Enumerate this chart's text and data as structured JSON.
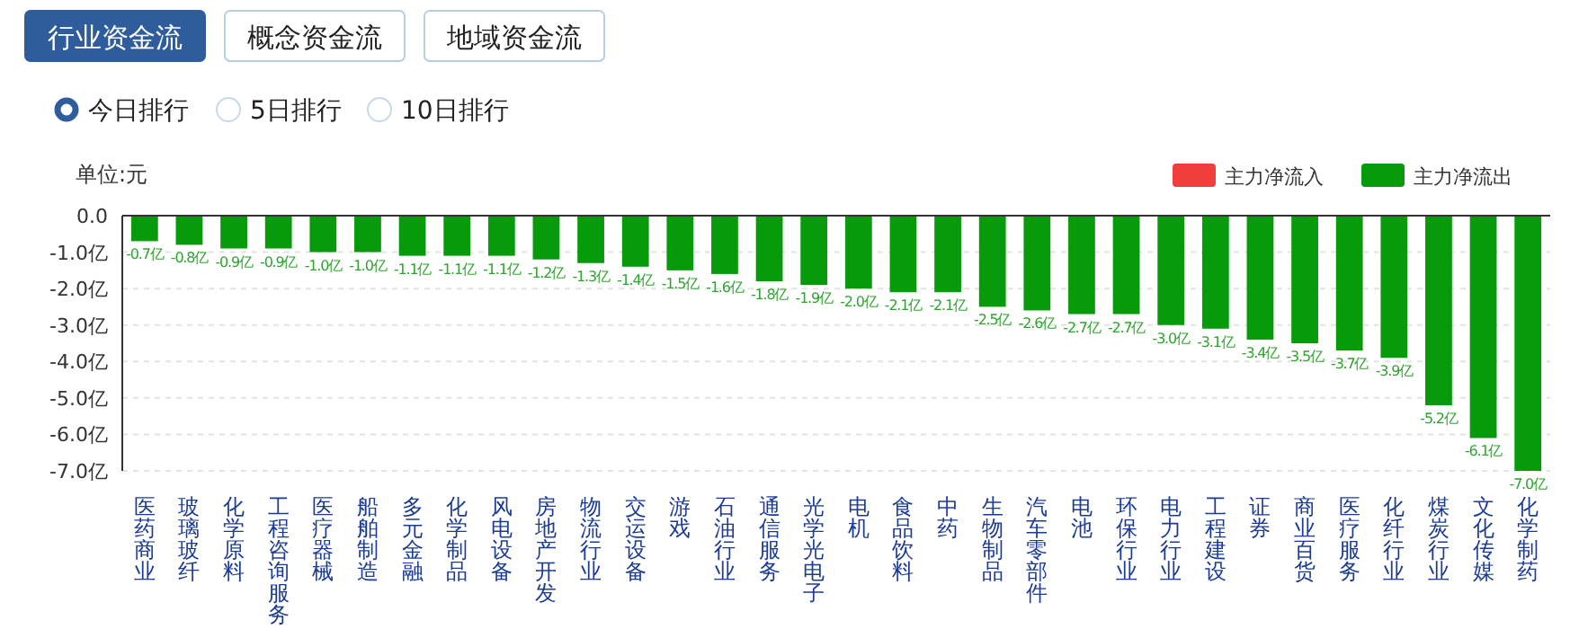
{
  "chart_data": {
    "type": "bar",
    "stacked": true,
    "ylabel": "单位:元",
    "annotations": [
      "行业资金流",
      "概念资金流",
      "地域资金流",
      "今日排行",
      "5日排行",
      "10日排行"
    ],
    "categories": [
      "医药商业",
      "玻璃玻纤",
      "化学原料",
      "工程咨询服务",
      "医疗器械",
      "船舶制造",
      "多元金融",
      "化学制品",
      "风电设备",
      "房地产开发",
      "物流行业",
      "交运设备",
      "游戏",
      "石油行业",
      "通信服务",
      "光学光电子",
      "电机",
      "食品饮料",
      "中药",
      "生物制品",
      "汽车零部件",
      "电池",
      "环保行业",
      "电力行业",
      "工程建设",
      "证券",
      "商业百货",
      "医疗服务",
      "化纤行业",
      "煤炭行业",
      "文化传媒",
      "化学制药"
    ],
    "series": [
      {
        "name": "主力净流入",
        "color": "#f23d3d",
        "values": [
          null,
          null,
          null,
          null,
          null,
          null,
          null,
          null,
          null,
          null,
          null,
          null,
          null,
          null,
          null,
          null,
          null,
          null,
          null,
          null,
          null,
          null,
          null,
          null,
          null,
          null,
          null,
          null,
          null,
          null,
          null,
          null
        ]
      },
      {
        "name": "主力净流出",
        "color": "#079a0a",
        "values": [
          -0.7,
          -0.8,
          -0.9,
          -0.9,
          -1.0,
          -1.0,
          -1.1,
          -1.1,
          -1.1,
          -1.2,
          -1.3,
          -1.4,
          -1.5,
          -1.6,
          -1.8,
          -1.9,
          -2.0,
          -2.1,
          -2.1,
          -2.5,
          -2.6,
          -2.7,
          -2.7,
          -3.0,
          -3.1,
          -3.4,
          -3.5,
          -3.7,
          -3.9,
          -5.2,
          -6.1,
          -7.0
        ],
        "value_labels": [
          "-0.7亿",
          "-0.8亿",
          "-0.9亿",
          "-0.9亿",
          "-1.0亿",
          "-1.0亿",
          "-1.1亿",
          "-1.1亿",
          "-1.1亿",
          "-1.2亿",
          "-1.3亿",
          "-1.4亿",
          "-1.5亿",
          "-1.6亿",
          "-1.8亿",
          "-1.9亿",
          "-2.0亿",
          "-2.1亿",
          "-2.1亿",
          "-2.5亿",
          "-2.6亿",
          "-2.7亿",
          "-2.7亿",
          "-3.0亿",
          "-3.1亿",
          "-3.4亿",
          "-3.5亿",
          "-3.7亿",
          "-3.9亿",
          "-5.2亿",
          "-6.1亿",
          "-7.0亿"
        ]
      }
    ],
    "ylim": [
      -7,
      0
    ],
    "yticks": [
      {
        "value": 0,
        "label": "0.0"
      },
      {
        "value": -1,
        "label": "-1.0亿"
      },
      {
        "value": -2,
        "label": "-2.0亿"
      },
      {
        "value": -3,
        "label": "-3.0亿"
      },
      {
        "value": -4,
        "label": "-4.0亿"
      },
      {
        "value": -5,
        "label": "-5.0亿"
      },
      {
        "value": -6,
        "label": "-6.0亿"
      },
      {
        "value": -7,
        "label": "-7.0亿"
      }
    ],
    "grid": "y",
    "legend": "top right"
  }
}
